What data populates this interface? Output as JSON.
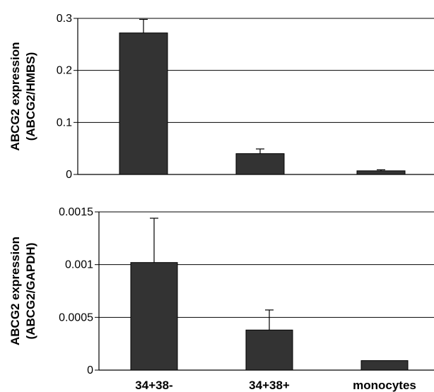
{
  "chart_data": [
    {
      "type": "bar",
      "categories": [
        "34+38-",
        "34+38+",
        "monocytes"
      ],
      "values": [
        0.272,
        0.04,
        0.007
      ],
      "errors": [
        0.026,
        0.009,
        0.002
      ],
      "ylabel_line1": "ABCG2 expression",
      "ylabel_line2": "(ABCG2/HMBS)",
      "ylim": [
        0,
        0.3
      ],
      "yticks": [
        0,
        0.1,
        0.2,
        0.3
      ],
      "ytick_labels": [
        "0",
        "0.1",
        "0.2",
        "0.3"
      ],
      "grid": true,
      "bar_color": "#333333"
    },
    {
      "type": "bar",
      "categories": [
        "34+38-",
        "34+38+",
        "monocytes"
      ],
      "values": [
        0.00102,
        0.00038,
        9e-05
      ],
      "errors": [
        0.00042,
        0.00019,
        0.0
      ],
      "ylabel_line1": "ABCG2 expression",
      "ylabel_line2": "(ABCG2/GAPDH)",
      "ylim": [
        0,
        0.0015
      ],
      "yticks": [
        0,
        0.0005,
        0.001,
        0.0015
      ],
      "ytick_labels": [
        "0",
        "0.0005",
        "0.001",
        "0.0015"
      ],
      "grid": true,
      "bar_color": "#333333"
    }
  ]
}
